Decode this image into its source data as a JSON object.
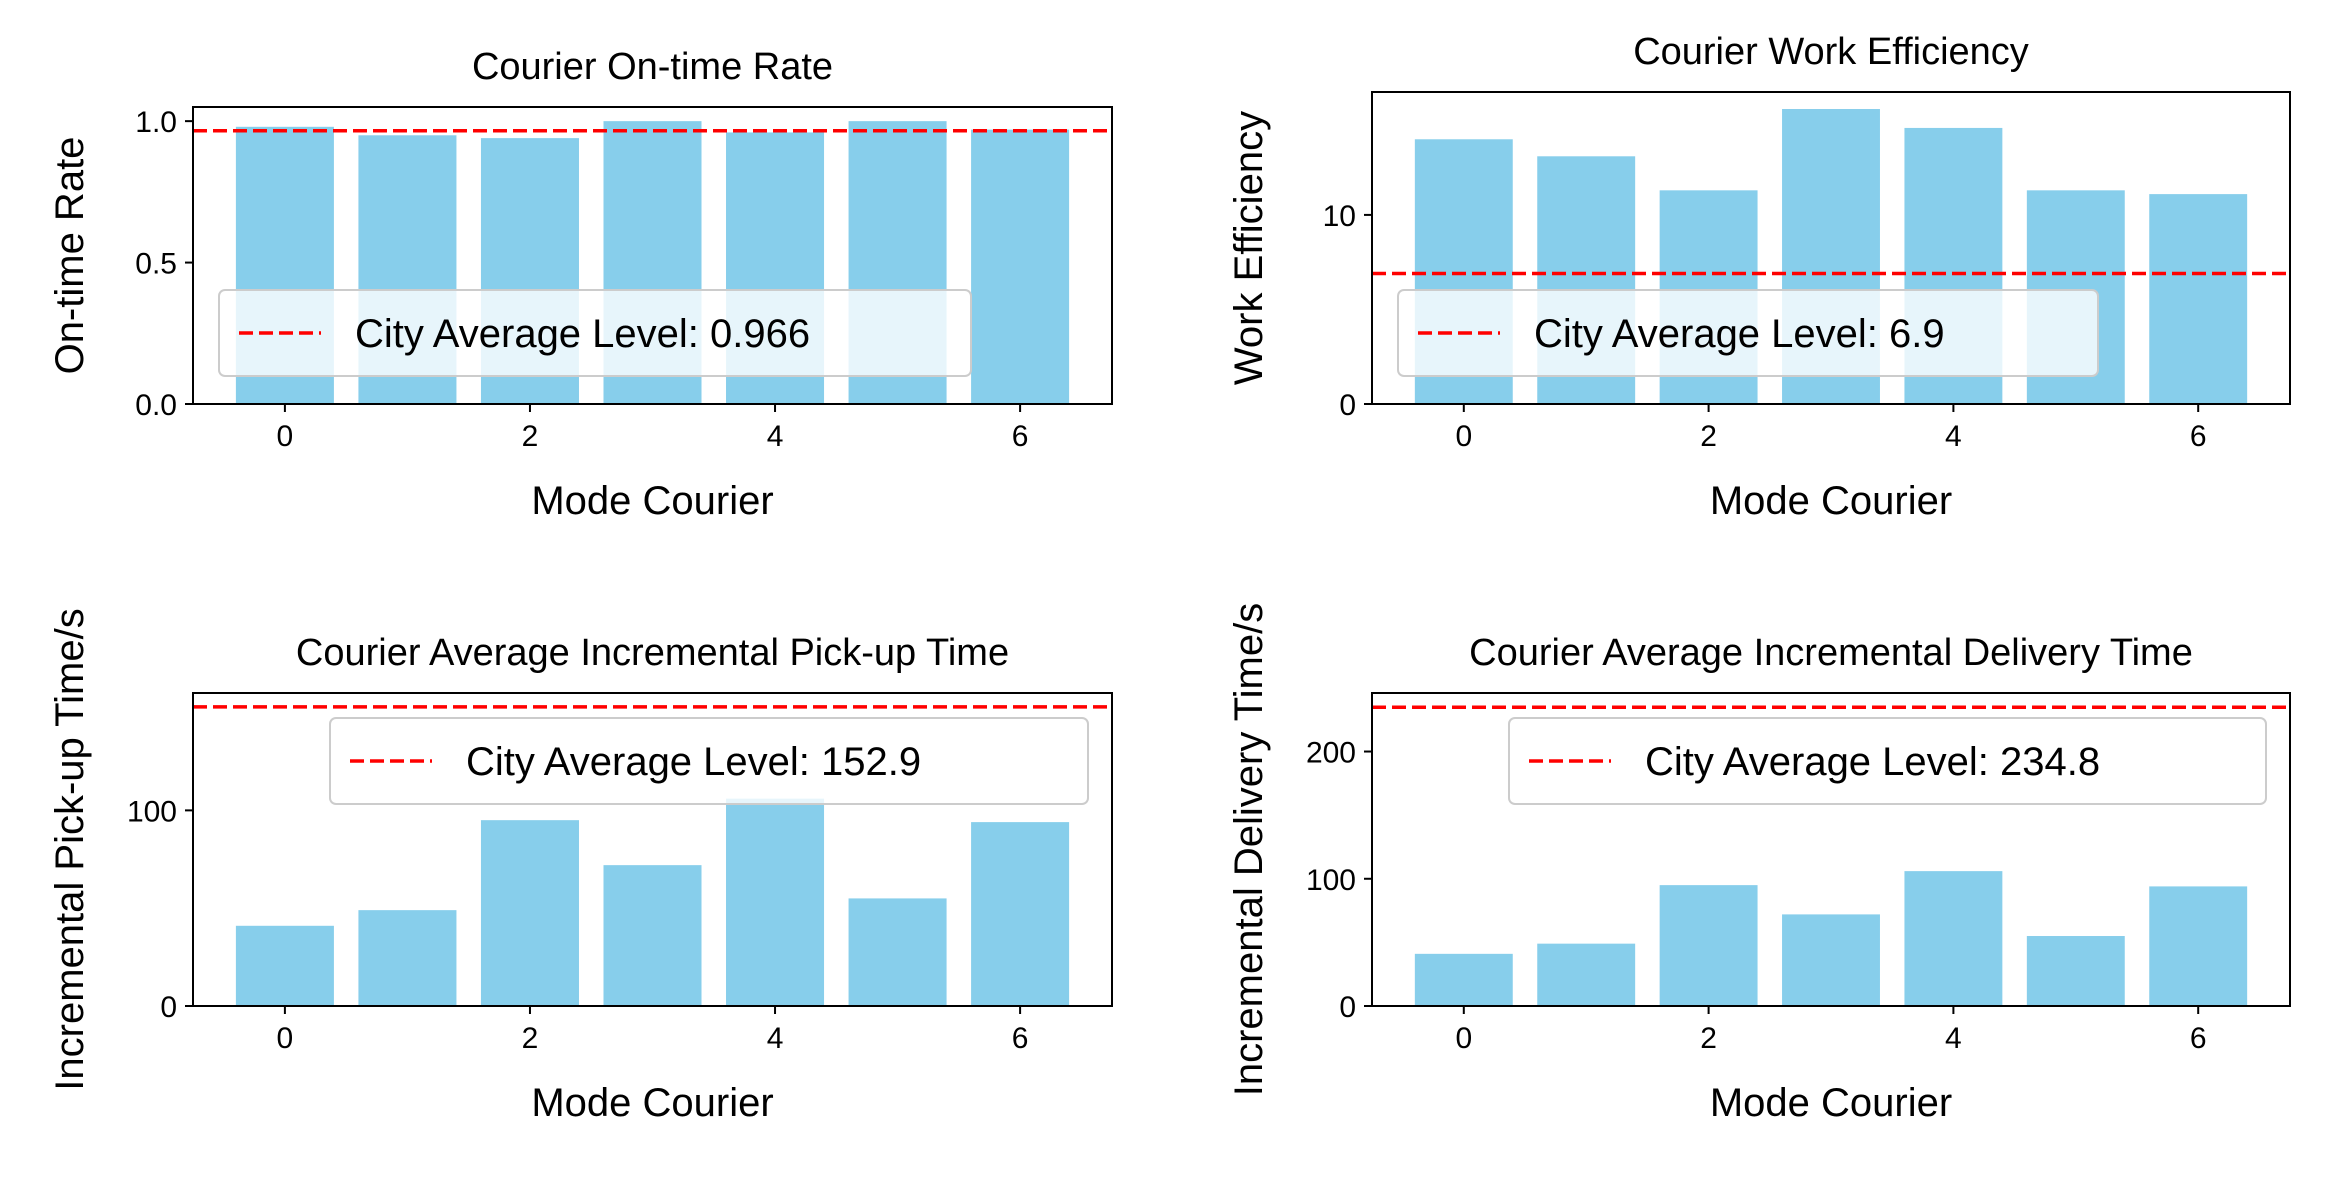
{
  "colors": {
    "bar": "#87ceeb",
    "average_line": "#ff0000",
    "axis": "#000000",
    "legend_border": "#cccccc",
    "background": "#ffffff"
  },
  "chart_data": [
    {
      "type": "bar",
      "title": "Courier On-time Rate",
      "xlabel": "Mode Courier",
      "ylabel": "On-time Rate",
      "categories": [
        0,
        1,
        2,
        3,
        4,
        5,
        6
      ],
      "values": [
        0.98,
        0.95,
        0.94,
        1.0,
        0.96,
        1.0,
        0.97
      ],
      "xlim": [
        -0.75,
        6.75
      ],
      "ylim": [
        0,
        1.05
      ],
      "xticks": [
        0,
        2,
        4,
        6
      ],
      "xtick_labels": [
        "0",
        "2",
        "4",
        "6"
      ],
      "yticks": [
        0,
        0.5,
        1.0
      ],
      "ytick_labels": [
        "0.0",
        "0.5",
        "1.0"
      ],
      "reference_line": {
        "value": 0.966,
        "label": "City Average Level: 0.966"
      },
      "legend_position": "lower-left"
    },
    {
      "type": "bar",
      "title": "Courier Work Efficiency",
      "xlabel": "Mode Courier",
      "ylabel": "Work Efficiency",
      "categories": [
        0,
        1,
        2,
        3,
        4,
        5,
        6
      ],
      "values": [
        14.0,
        13.1,
        11.3,
        15.6,
        14.6,
        11.3,
        11.1
      ],
      "xlim": [
        -0.75,
        6.75
      ],
      "ylim": [
        0,
        16.5
      ],
      "xticks": [
        0,
        2,
        4,
        6
      ],
      "xtick_labels": [
        "0",
        "2",
        "4",
        "6"
      ],
      "yticks": [
        0,
        10
      ],
      "ytick_labels": [
        "0",
        "10"
      ],
      "reference_line": {
        "value": 6.9,
        "label": "City Average Level: 6.9"
      },
      "legend_position": "lower-left"
    },
    {
      "type": "bar",
      "title": "Courier Average Incremental Pick-up Time",
      "xlabel": "Mode Courier",
      "ylabel": "Incremental Pick-up Time/s",
      "categories": [
        0,
        1,
        2,
        3,
        4,
        5,
        6
      ],
      "values": [
        41,
        49,
        95,
        72,
        106,
        55,
        94
      ],
      "xlim": [
        -0.75,
        6.75
      ],
      "ylim": [
        0,
        160
      ],
      "xticks": [
        0,
        2,
        4,
        6
      ],
      "xtick_labels": [
        "0",
        "2",
        "4",
        "6"
      ],
      "yticks": [
        0,
        100
      ],
      "ytick_labels": [
        "0",
        "100"
      ],
      "reference_line": {
        "value": 152.9,
        "label": "City Average Level: 152.9"
      },
      "legend_position": "upper-right"
    },
    {
      "type": "bar",
      "title": "Courier Average Incremental Delivery Time",
      "xlabel": "Mode Courier",
      "ylabel": "Incremental Delivery Time/s",
      "categories": [
        0,
        1,
        2,
        3,
        4,
        5,
        6
      ],
      "values": [
        41,
        49,
        95,
        72,
        106,
        55,
        94
      ],
      "xlim": [
        -0.75,
        6.75
      ],
      "ylim": [
        0,
        246
      ],
      "xticks": [
        0,
        2,
        4,
        6
      ],
      "xtick_labels": [
        "0",
        "2",
        "4",
        "6"
      ],
      "yticks": [
        0,
        100,
        200
      ],
      "ytick_labels": [
        "0",
        "100",
        "200"
      ],
      "reference_line": {
        "value": 234.8,
        "label": "City Average Level: 234.8"
      },
      "legend_position": "upper-right"
    }
  ]
}
